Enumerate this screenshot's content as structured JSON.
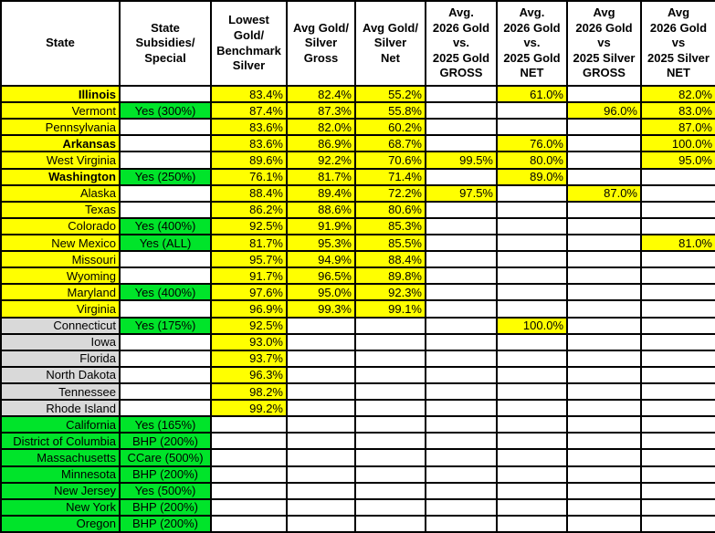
{
  "table": {
    "colors": {
      "yellow": "#FFFF00",
      "green": "#00E42A",
      "gray": "#D9D9D9",
      "white": "#FFFFFF",
      "border": "#000000"
    },
    "columns": [
      {
        "id": "state",
        "label": "State"
      },
      {
        "id": "subsidies",
        "label": "State\nSubsidies/\nSpecial"
      },
      {
        "id": "lowest-gold-benchmark-silver",
        "label": "Lowest\nGold/\nBenchmark\nSilver"
      },
      {
        "id": "avg-gold-silver-gross",
        "label": "Avg Gold/\nSilver\nGross"
      },
      {
        "id": "avg-gold-silver-net",
        "label": "Avg Gold/\nSilver\nNet"
      },
      {
        "id": "2026-gold-vs-2025-gold-gross",
        "label": "Avg.\n2026 Gold\nvs.\n2025 Gold\nGROSS"
      },
      {
        "id": "2026-gold-vs-2025-gold-net",
        "label": "Avg.\n2026 Gold\nvs.\n2025 Gold\nNET"
      },
      {
        "id": "2026-gold-vs-2025-silver-gross",
        "label": "Avg\n2026 Gold\nvs\n2025 Silver\nGROSS"
      },
      {
        "id": "2026-gold-vs-2025-silver-net",
        "label": "Avg\n2026 Gold\nvs\n2025 Silver\nNET"
      }
    ],
    "rows": [
      {
        "state": "Illinois",
        "group": "yellow",
        "bold": true,
        "subsidy": "",
        "values": [
          "83.4%",
          "82.4%",
          "55.2%",
          "",
          "61.0%",
          "",
          "82.0%"
        ]
      },
      {
        "state": "Vermont",
        "group": "yellow",
        "bold": false,
        "subsidy": "Yes (300%)",
        "values": [
          "87.4%",
          "87.3%",
          "55.8%",
          "",
          "",
          "96.0%",
          "83.0%"
        ]
      },
      {
        "state": "Pennsylvania",
        "group": "yellow",
        "bold": false,
        "subsidy": "",
        "values": [
          "83.6%",
          "82.0%",
          "60.2%",
          "",
          "",
          "",
          "87.0%"
        ]
      },
      {
        "state": "Arkansas",
        "group": "yellow",
        "bold": true,
        "subsidy": "",
        "values": [
          "83.6%",
          "86.9%",
          "68.7%",
          "",
          "76.0%",
          "",
          "100.0%"
        ]
      },
      {
        "state": "West Virginia",
        "group": "yellow",
        "bold": false,
        "subsidy": "",
        "values": [
          "89.6%",
          "92.2%",
          "70.6%",
          "99.5%",
          "80.0%",
          "",
          "95.0%"
        ]
      },
      {
        "state": "Washington",
        "group": "yellow",
        "bold": true,
        "subsidy": "Yes (250%)",
        "values": [
          "76.1%",
          "81.7%",
          "71.4%",
          "",
          "89.0%",
          "",
          ""
        ]
      },
      {
        "state": "Alaska",
        "group": "yellow",
        "bold": false,
        "subsidy": "",
        "values": [
          "88.4%",
          "89.4%",
          "72.2%",
          "97.5%",
          "",
          "87.0%",
          ""
        ]
      },
      {
        "state": "Texas",
        "group": "yellow",
        "bold": false,
        "subsidy": "",
        "values": [
          "86.2%",
          "88.6%",
          "80.6%",
          "",
          "",
          "",
          ""
        ]
      },
      {
        "state": "Colorado",
        "group": "yellow",
        "bold": false,
        "subsidy": "Yes (400%)",
        "values": [
          "92.5%",
          "91.9%",
          "85.3%",
          "",
          "",
          "",
          ""
        ]
      },
      {
        "state": "New Mexico",
        "group": "yellow",
        "bold": false,
        "subsidy": "Yes (ALL)",
        "values": [
          "81.7%",
          "95.3%",
          "85.5%",
          "",
          "",
          "",
          "81.0%"
        ]
      },
      {
        "state": "Missouri",
        "group": "yellow",
        "bold": false,
        "subsidy": "",
        "values": [
          "95.7%",
          "94.9%",
          "88.4%",
          "",
          "",
          "",
          ""
        ]
      },
      {
        "state": "Wyoming",
        "group": "yellow",
        "bold": false,
        "subsidy": "",
        "values": [
          "91.7%",
          "96.5%",
          "89.8%",
          "",
          "",
          "",
          ""
        ]
      },
      {
        "state": "Maryland",
        "group": "yellow",
        "bold": false,
        "subsidy": "Yes (400%)",
        "values": [
          "97.6%",
          "95.0%",
          "92.3%",
          "",
          "",
          "",
          ""
        ]
      },
      {
        "state": "Virginia",
        "group": "yellow",
        "bold": false,
        "subsidy": "",
        "values": [
          "96.9%",
          "99.3%",
          "99.1%",
          "",
          "",
          "",
          ""
        ]
      },
      {
        "state": "Connecticut",
        "group": "gray",
        "bold": false,
        "subsidy": "Yes (175%)",
        "values": [
          "92.5%",
          "",
          "",
          "",
          "100.0%",
          "",
          ""
        ]
      },
      {
        "state": "Iowa",
        "group": "gray",
        "bold": false,
        "subsidy": "",
        "values": [
          "93.0%",
          "",
          "",
          "",
          "",
          "",
          ""
        ]
      },
      {
        "state": "Florida",
        "group": "gray",
        "bold": false,
        "subsidy": "",
        "values": [
          "93.7%",
          "",
          "",
          "",
          "",
          "",
          ""
        ]
      },
      {
        "state": "North Dakota",
        "group": "gray",
        "bold": false,
        "subsidy": "",
        "values": [
          "96.3%",
          "",
          "",
          "",
          "",
          "",
          ""
        ]
      },
      {
        "state": "Tennessee",
        "group": "gray",
        "bold": false,
        "subsidy": "",
        "values": [
          "98.2%",
          "",
          "",
          "",
          "",
          "",
          ""
        ]
      },
      {
        "state": "Rhode Island",
        "group": "gray",
        "bold": false,
        "subsidy": "",
        "values": [
          "99.2%",
          "",
          "",
          "",
          "",
          "",
          ""
        ]
      },
      {
        "state": "California",
        "group": "green",
        "bold": false,
        "subsidy": "Yes (165%)",
        "values": [
          "",
          "",
          "",
          "",
          "",
          "",
          ""
        ]
      },
      {
        "state": "District of Columbia",
        "group": "green",
        "bold": false,
        "subsidy": "BHP (200%)",
        "values": [
          "",
          "",
          "",
          "",
          "",
          "",
          ""
        ]
      },
      {
        "state": "Massachusetts",
        "group": "green",
        "bold": false,
        "subsidy": "CCare (500%)",
        "values": [
          "",
          "",
          "",
          "",
          "",
          "",
          ""
        ]
      },
      {
        "state": "Minnesota",
        "group": "green",
        "bold": false,
        "subsidy": "BHP (200%)",
        "values": [
          "",
          "",
          "",
          "",
          "",
          "",
          ""
        ]
      },
      {
        "state": "New Jersey",
        "group": "green",
        "bold": false,
        "subsidy": "Yes (500%)",
        "values": [
          "",
          "",
          "",
          "",
          "",
          "",
          ""
        ]
      },
      {
        "state": "New York",
        "group": "green",
        "bold": false,
        "subsidy": "BHP (200%)",
        "values": [
          "",
          "",
          "",
          "",
          "",
          "",
          ""
        ]
      },
      {
        "state": "Oregon",
        "group": "green",
        "bold": false,
        "subsidy": "BHP (200%)",
        "values": [
          "",
          "",
          "",
          "",
          "",
          "",
          ""
        ]
      }
    ]
  }
}
